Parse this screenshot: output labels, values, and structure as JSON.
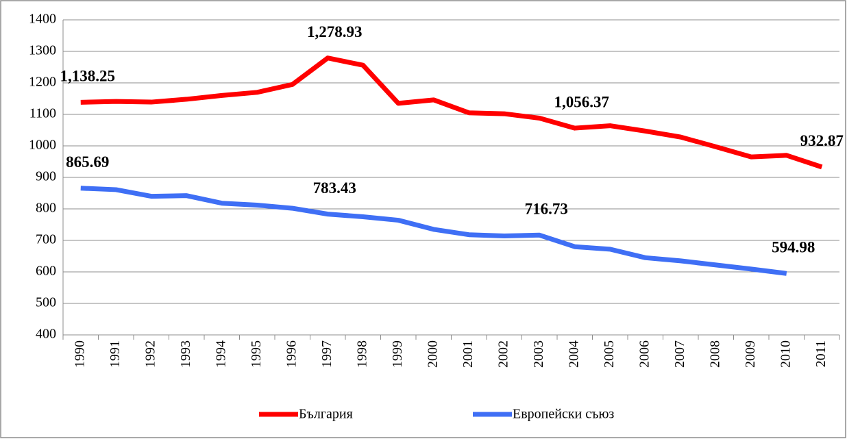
{
  "chart_data": {
    "type": "line",
    "categories": [
      "1990",
      "1991",
      "1992",
      "1993",
      "1994",
      "1995",
      "1996",
      "1997",
      "1998",
      "1999",
      "2000",
      "2001",
      "2002",
      "2003",
      "2004",
      "2005",
      "2006",
      "2007",
      "2008",
      "2009",
      "2010",
      "2011"
    ],
    "series": [
      {
        "name": "България",
        "color": "#ff0000",
        "values": [
          1138.25,
          1141,
          1139,
          1148,
          1160,
          1170,
          1195,
          1278.93,
          1256,
          1135,
          1146,
          1105,
          1102,
          1088,
          1056.37,
          1064,
          1047,
          1028,
          997,
          965,
          970,
          932.87
        ],
        "value_labels": [
          "1,138.25",
          null,
          null,
          null,
          null,
          null,
          null,
          "1,278.93",
          null,
          null,
          null,
          null,
          null,
          null,
          "1,056.37",
          null,
          null,
          null,
          null,
          null,
          null,
          "932.87"
        ]
      },
      {
        "name": "Европейски съюз",
        "color": "#3f6ff5",
        "values": [
          865.69,
          861,
          840,
          842,
          818,
          812,
          802,
          783.43,
          775,
          764,
          735,
          718,
          714,
          716.73,
          680,
          672,
          645,
          635,
          622,
          609,
          594.98,
          null
        ],
        "value_labels": [
          "865.69",
          null,
          null,
          null,
          null,
          null,
          null,
          "783.43",
          null,
          null,
          null,
          null,
          null,
          "716.73",
          null,
          null,
          null,
          null,
          null,
          null,
          "594.98",
          null
        ]
      }
    ],
    "ylim": [
      400,
      1400
    ],
    "yticks": [
      400,
      500,
      600,
      700,
      800,
      900,
      1000,
      1100,
      1200,
      1300,
      1400
    ],
    "grid": true,
    "legend": "bottom"
  }
}
